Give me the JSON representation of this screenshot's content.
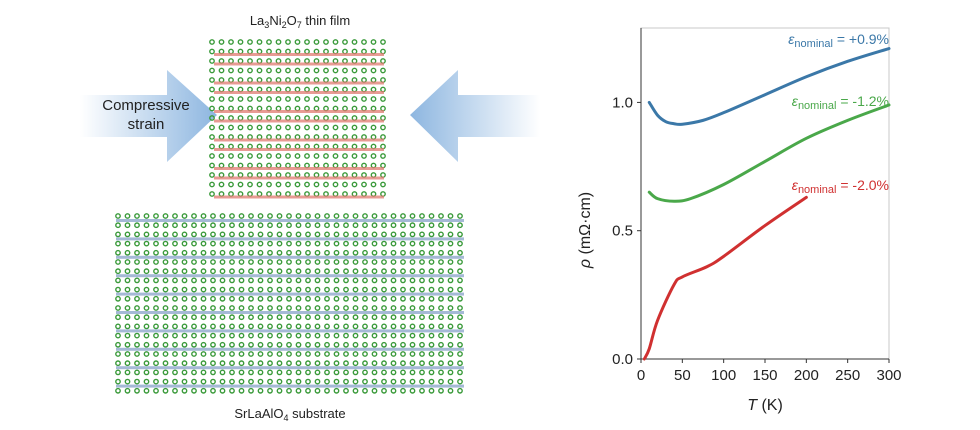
{
  "diagram": {
    "film_label": {
      "main": "La",
      "s1": "3",
      "m2": "Ni",
      "s2": "2",
      "m3": "O",
      "s3": "7",
      "rest": " thin film"
    },
    "substrate_label": {
      "main": "SrLaAlO",
      "s1": "4",
      "rest": " substrate"
    },
    "strain_label_line1": "Compressive",
    "strain_label_line2": "strain",
    "colors": {
      "film_atoms": "#e07a70",
      "substrate_atoms": "#8fa8cc",
      "la_atoms": "#3a9a3a",
      "arrow": "#a9c6e6"
    }
  },
  "chart_data": {
    "type": "line",
    "xlabel": "T (K)",
    "xlabel_var": "T",
    "xlabel_unit": " (K)",
    "ylabel": "ρ (mΩ·cm)",
    "ylabel_var": "ρ",
    "ylabel_unit": " (mΩ·cm)",
    "xlim": [
      0,
      300
    ],
    "ylim": [
      0,
      1.29
    ],
    "xticks": [
      "0",
      "50",
      "100",
      "150",
      "200",
      "250",
      "300"
    ],
    "xtick_values": [
      0,
      50,
      100,
      150,
      200,
      250,
      300
    ],
    "yticks": [
      "0.0",
      "0.5",
      "1.0"
    ],
    "ytick_values": [
      0,
      0.5,
      1.0
    ],
    "grid": false,
    "series": [
      {
        "name": "ε_nominal = +0.9%",
        "label_sym": "ε",
        "label_sub": "nominal",
        "label_val": " = +0.9%",
        "color": "#3b78a8",
        "x": [
          10,
          20,
          30,
          40,
          50,
          75,
          100,
          150,
          200,
          250,
          300
        ],
        "y": [
          1.0,
          0.95,
          0.925,
          0.917,
          0.915,
          0.93,
          0.96,
          1.03,
          1.1,
          1.16,
          1.21
        ]
      },
      {
        "name": "ε_nominal = -1.2%",
        "label_sym": "ε",
        "label_sub": "nominal",
        "label_val": " = -1.2%",
        "color": "#4aa84a",
        "x": [
          10,
          20,
          40,
          60,
          100,
          150,
          200,
          250,
          300
        ],
        "y": [
          0.65,
          0.625,
          0.615,
          0.625,
          0.68,
          0.77,
          0.86,
          0.93,
          0.99
        ]
      },
      {
        "name": "ε_nominal = -2.0%",
        "label_sym": "ε",
        "label_sub": "nominal",
        "label_val": " = -2.0%",
        "color": "#d03030",
        "x": [
          4,
          10,
          20,
          40,
          50,
          80,
          100,
          150,
          200
        ],
        "y": [
          0.0,
          0.04,
          0.15,
          0.29,
          0.32,
          0.36,
          0.4,
          0.52,
          0.63
        ]
      }
    ]
  }
}
